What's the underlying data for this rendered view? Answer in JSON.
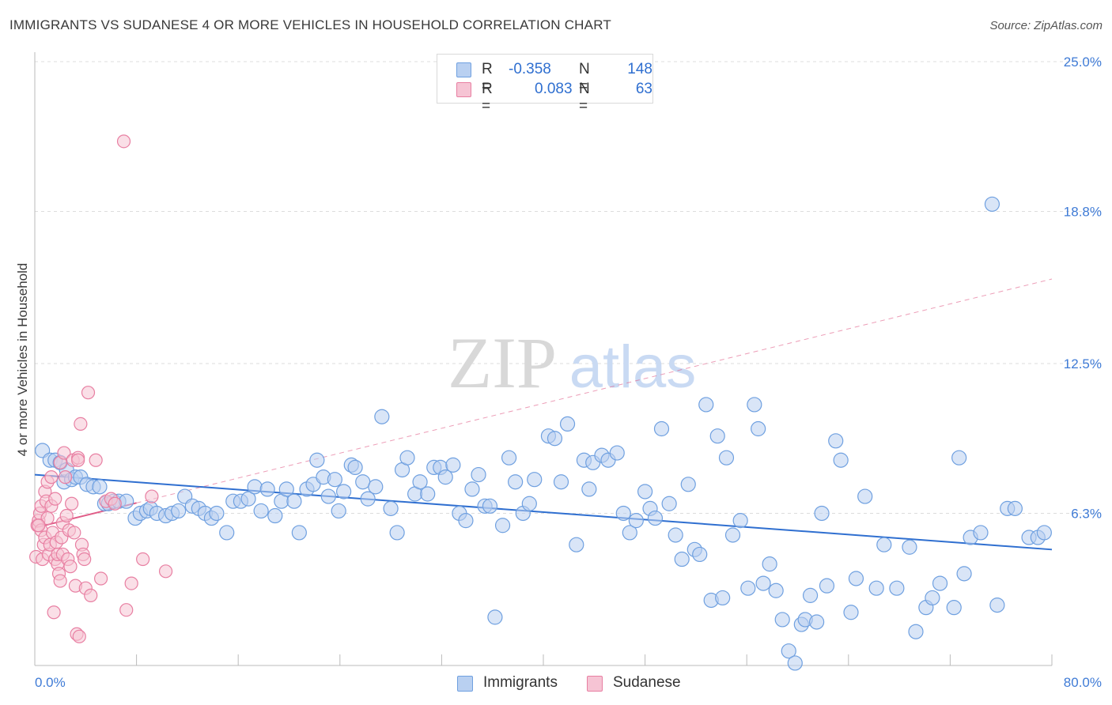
{
  "title": "IMMIGRANTS VS SUDANESE 4 OR MORE VEHICLES IN HOUSEHOLD CORRELATION CHART",
  "source": "Source: ZipAtlas.com",
  "watermark": {
    "zip": "ZIP",
    "atlas": "atlas"
  },
  "legend": {
    "rows": [
      {
        "r_label": "R =",
        "r_value": "-0.358",
        "n_label": "N =",
        "n_value": "148",
        "color": "#6fa0e0",
        "fill": "#b9d0f1"
      },
      {
        "r_label": "R =",
        "r_value": "0.083",
        "n_label": "N =",
        "n_value": "63",
        "color": "#e87fa2",
        "fill": "#f6c4d4"
      }
    ]
  },
  "bottom_legend": [
    {
      "label": "Immigrants",
      "color": "#6fa0e0",
      "fill": "#b9d0f1"
    },
    {
      "label": "Sudanese",
      "color": "#e87fa2",
      "fill": "#f6c4d4"
    }
  ],
  "chart_data": {
    "type": "scatter",
    "title": "IMMIGRANTS VS SUDANESE 4 OR MORE VEHICLES IN HOUSEHOLD CORRELATION CHART",
    "xlabel": "",
    "ylabel": "4 or more Vehicles in Household",
    "xlim": [
      0,
      80
    ],
    "ylim": [
      0,
      25
    ],
    "x_tick_labels": [
      "0.0%",
      "80.0%"
    ],
    "y_ticks": [
      6.3,
      12.5,
      18.8,
      25.0
    ],
    "y_tick_labels": [
      "6.3%",
      "12.5%",
      "18.8%",
      "25.0%"
    ],
    "grid": true,
    "legend_position": "top-center",
    "series": [
      {
        "name": "Immigrants",
        "color": "#6fa0e0",
        "fill": "#b9d0f1",
        "trend": {
          "x": [
            0,
            80
          ],
          "y": [
            7.9,
            4.8
          ],
          "style": "solid",
          "color": "#2f6fd0"
        },
        "points": [
          [
            0.6,
            8.9
          ],
          [
            1.2,
            8.5
          ],
          [
            1.6,
            8.5
          ],
          [
            2.0,
            8.4
          ],
          [
            2.3,
            7.6
          ],
          [
            2.5,
            8.1
          ],
          [
            2.9,
            7.7
          ],
          [
            3.2,
            7.8
          ],
          [
            3.6,
            7.8
          ],
          [
            4.1,
            7.5
          ],
          [
            4.6,
            7.4
          ],
          [
            5.1,
            7.4
          ],
          [
            5.5,
            6.7
          ],
          [
            5.8,
            6.7
          ],
          [
            6.2,
            6.8
          ],
          [
            6.6,
            6.8
          ],
          [
            7.2,
            6.8
          ],
          [
            7.9,
            6.1
          ],
          [
            8.3,
            6.3
          ],
          [
            8.8,
            6.4
          ],
          [
            9.1,
            6.5
          ],
          [
            9.6,
            6.3
          ],
          [
            10.3,
            6.2
          ],
          [
            10.8,
            6.3
          ],
          [
            11.3,
            6.4
          ],
          [
            11.8,
            7.0
          ],
          [
            12.4,
            6.6
          ],
          [
            12.9,
            6.5
          ],
          [
            13.4,
            6.3
          ],
          [
            13.9,
            6.1
          ],
          [
            14.3,
            6.3
          ],
          [
            15.1,
            5.5
          ],
          [
            15.6,
            6.8
          ],
          [
            16.2,
            6.8
          ],
          [
            16.8,
            6.9
          ],
          [
            17.3,
            7.4
          ],
          [
            17.8,
            6.4
          ],
          [
            18.3,
            7.3
          ],
          [
            18.9,
            6.2
          ],
          [
            19.4,
            6.8
          ],
          [
            19.8,
            7.3
          ],
          [
            20.4,
            6.8
          ],
          [
            20.8,
            5.5
          ],
          [
            21.4,
            7.3
          ],
          [
            21.9,
            7.5
          ],
          [
            22.2,
            8.5
          ],
          [
            22.7,
            7.8
          ],
          [
            23.1,
            7.0
          ],
          [
            23.6,
            7.7
          ],
          [
            23.9,
            6.4
          ],
          [
            24.3,
            7.2
          ],
          [
            24.9,
            8.3
          ],
          [
            25.2,
            8.2
          ],
          [
            25.8,
            7.6
          ],
          [
            26.2,
            6.9
          ],
          [
            26.8,
            7.4
          ],
          [
            27.3,
            10.3
          ],
          [
            28.0,
            6.5
          ],
          [
            28.5,
            5.5
          ],
          [
            28.9,
            8.1
          ],
          [
            29.3,
            8.6
          ],
          [
            29.9,
            7.1
          ],
          [
            30.3,
            7.6
          ],
          [
            30.9,
            7.1
          ],
          [
            31.4,
            8.2
          ],
          [
            31.9,
            8.2
          ],
          [
            32.3,
            7.8
          ],
          [
            32.9,
            8.3
          ],
          [
            33.4,
            6.3
          ],
          [
            33.9,
            6.0
          ],
          [
            34.4,
            7.3
          ],
          [
            34.9,
            7.9
          ],
          [
            35.4,
            6.6
          ],
          [
            35.8,
            6.6
          ],
          [
            36.2,
            2.0
          ],
          [
            36.8,
            5.8
          ],
          [
            37.3,
            8.6
          ],
          [
            37.8,
            7.6
          ],
          [
            38.4,
            6.3
          ],
          [
            38.9,
            6.7
          ],
          [
            39.3,
            7.7
          ],
          [
            40.4,
            9.5
          ],
          [
            40.9,
            9.4
          ],
          [
            41.4,
            7.6
          ],
          [
            41.9,
            10.0
          ],
          [
            42.6,
            5.0
          ],
          [
            43.2,
            8.5
          ],
          [
            43.6,
            7.3
          ],
          [
            43.9,
            8.4
          ],
          [
            44.6,
            8.7
          ],
          [
            45.1,
            8.5
          ],
          [
            45.8,
            8.8
          ],
          [
            46.3,
            6.3
          ],
          [
            46.8,
            5.5
          ],
          [
            47.3,
            6.0
          ],
          [
            48.0,
            7.2
          ],
          [
            48.4,
            6.5
          ],
          [
            48.8,
            6.1
          ],
          [
            49.3,
            9.8
          ],
          [
            49.9,
            6.7
          ],
          [
            50.4,
            5.4
          ],
          [
            50.9,
            4.4
          ],
          [
            51.4,
            7.5
          ],
          [
            51.9,
            4.8
          ],
          [
            52.3,
            4.6
          ],
          [
            52.8,
            10.8
          ],
          [
            53.2,
            2.7
          ],
          [
            53.7,
            9.5
          ],
          [
            54.1,
            2.8
          ],
          [
            54.4,
            8.6
          ],
          [
            54.9,
            5.4
          ],
          [
            55.5,
            6.0
          ],
          [
            56.1,
            3.2
          ],
          [
            56.6,
            10.8
          ],
          [
            56.9,
            9.8
          ],
          [
            57.3,
            3.4
          ],
          [
            57.8,
            4.2
          ],
          [
            58.3,
            3.1
          ],
          [
            58.8,
            1.9
          ],
          [
            59.3,
            0.6
          ],
          [
            59.8,
            0.1
          ],
          [
            60.3,
            1.7
          ],
          [
            60.6,
            1.9
          ],
          [
            61.0,
            2.9
          ],
          [
            61.5,
            1.8
          ],
          [
            61.9,
            6.3
          ],
          [
            62.3,
            3.3
          ],
          [
            63.0,
            9.3
          ],
          [
            63.4,
            8.5
          ],
          [
            64.2,
            2.2
          ],
          [
            64.6,
            3.6
          ],
          [
            65.3,
            7.0
          ],
          [
            66.2,
            3.2
          ],
          [
            66.8,
            5.0
          ],
          [
            67.8,
            3.2
          ],
          [
            68.8,
            4.9
          ],
          [
            69.3,
            1.4
          ],
          [
            70.1,
            2.4
          ],
          [
            70.6,
            2.8
          ],
          [
            71.2,
            3.4
          ],
          [
            72.3,
            2.4
          ],
          [
            73.1,
            3.8
          ],
          [
            72.7,
            8.6
          ],
          [
            73.6,
            5.3
          ],
          [
            74.4,
            5.5
          ],
          [
            75.3,
            19.1
          ],
          [
            75.7,
            2.5
          ],
          [
            76.5,
            6.5
          ],
          [
            77.1,
            6.5
          ],
          [
            78.2,
            5.3
          ],
          [
            78.9,
            5.3
          ],
          [
            79.4,
            5.5
          ]
        ]
      },
      {
        "name": "Sudanese",
        "color": "#e87fa2",
        "fill": "#f6c4d4",
        "trend": {
          "x": [
            0,
            80
          ],
          "y": [
            5.7,
            16.0
          ],
          "style": "solid-then-dashed",
          "solid_until_x": 8.0,
          "color": "#e05c87"
        },
        "points": [
          [
            0.1,
            4.5
          ],
          [
            0.2,
            5.8
          ],
          [
            0.3,
            6.0
          ],
          [
            0.4,
            6.3
          ],
          [
            0.5,
            5.6
          ],
          [
            0.5,
            6.6
          ],
          [
            0.6,
            4.4
          ],
          [
            0.7,
            5.0
          ],
          [
            0.8,
            7.2
          ],
          [
            0.8,
            5.3
          ],
          [
            0.9,
            6.8
          ],
          [
            1.0,
            6.1
          ],
          [
            1.0,
            7.6
          ],
          [
            1.1,
            4.6
          ],
          [
            1.2,
            5.0
          ],
          [
            1.3,
            6.6
          ],
          [
            1.3,
            7.8
          ],
          [
            1.4,
            5.5
          ],
          [
            1.5,
            2.2
          ],
          [
            1.6,
            4.4
          ],
          [
            1.6,
            6.9
          ],
          [
            1.7,
            5.1
          ],
          [
            1.8,
            4.2
          ],
          [
            1.8,
            4.6
          ],
          [
            1.9,
            3.8
          ],
          [
            2.0,
            3.5
          ],
          [
            2.0,
            8.4
          ],
          [
            2.1,
            5.3
          ],
          [
            2.2,
            5.9
          ],
          [
            2.2,
            4.6
          ],
          [
            2.3,
            8.8
          ],
          [
            2.4,
            7.8
          ],
          [
            2.5,
            6.2
          ],
          [
            2.6,
            4.4
          ],
          [
            2.7,
            5.6
          ],
          [
            2.8,
            4.1
          ],
          [
            2.9,
            6.7
          ],
          [
            3.0,
            8.5
          ],
          [
            3.1,
            5.5
          ],
          [
            3.2,
            3.3
          ],
          [
            3.3,
            1.3
          ],
          [
            3.4,
            8.6
          ],
          [
            3.6,
            10.0
          ],
          [
            3.7,
            5.0
          ],
          [
            3.8,
            4.6
          ],
          [
            3.9,
            4.4
          ],
          [
            3.4,
            8.5
          ],
          [
            3.5,
            1.2
          ],
          [
            4.0,
            3.2
          ],
          [
            4.2,
            11.3
          ],
          [
            4.4,
            2.9
          ],
          [
            4.8,
            8.5
          ],
          [
            5.2,
            3.6
          ],
          [
            5.6,
            6.8
          ],
          [
            6.0,
            6.9
          ],
          [
            6.3,
            6.7
          ],
          [
            7.0,
            21.7
          ],
          [
            7.2,
            2.3
          ],
          [
            7.6,
            3.4
          ],
          [
            8.5,
            4.4
          ],
          [
            9.2,
            7.0
          ],
          [
            10.3,
            3.9
          ],
          [
            0.3,
            5.8
          ]
        ]
      }
    ]
  }
}
